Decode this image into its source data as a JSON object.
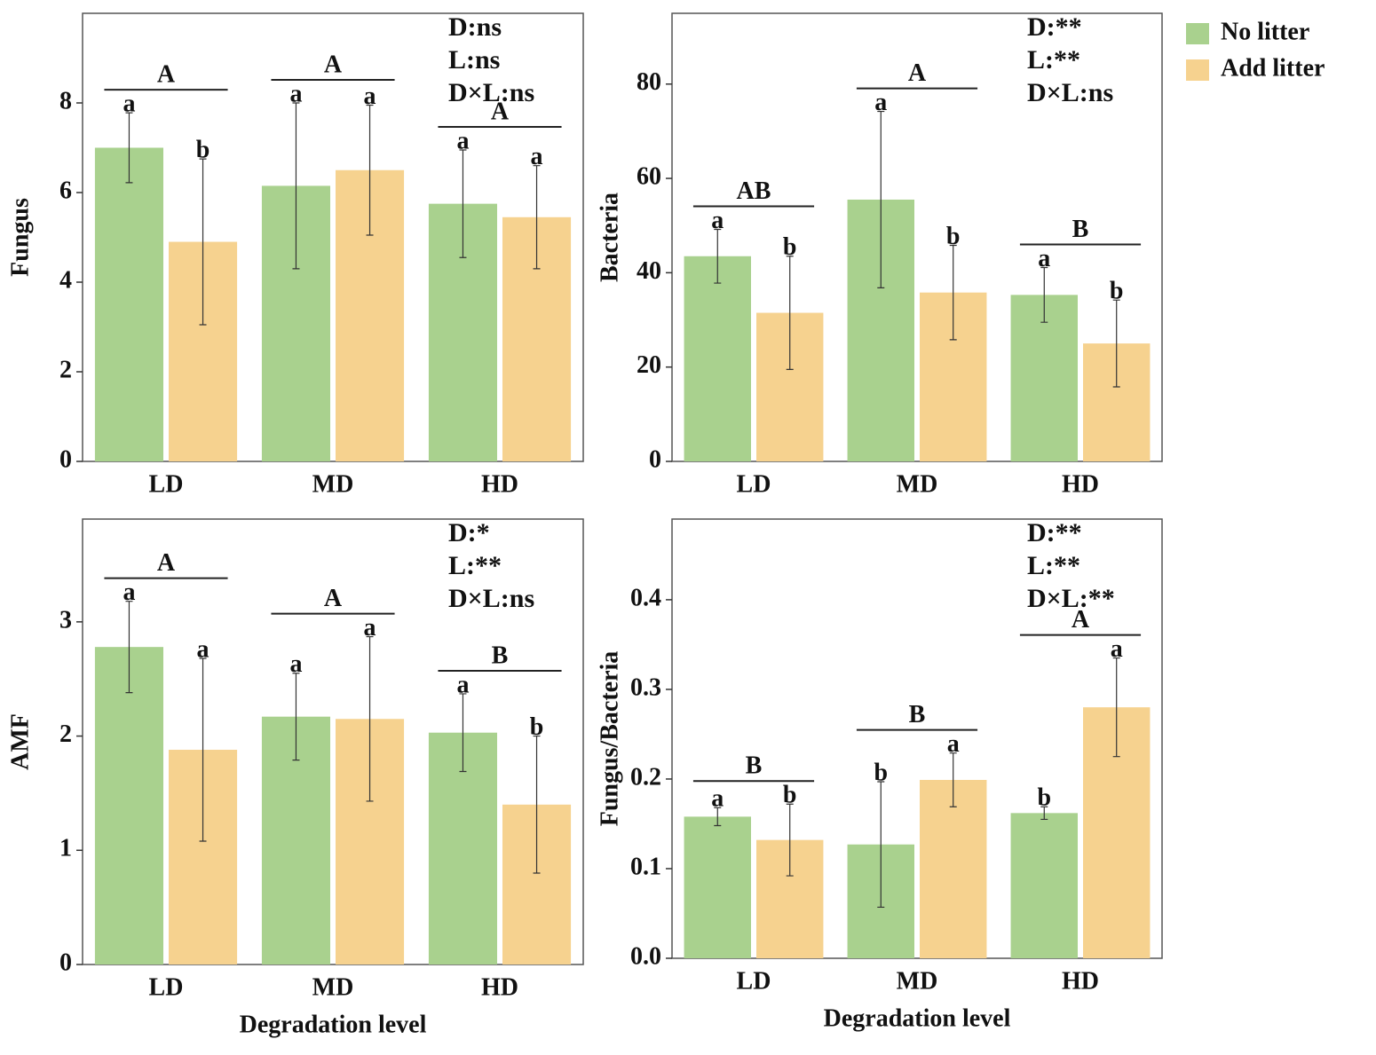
{
  "legend": [
    {
      "name": "No litter",
      "color": "#a9d18e"
    },
    {
      "name": "Add litter",
      "color": "#f6d28f"
    }
  ],
  "chart_data": [
    {
      "type": "bar",
      "ylabel": "Fungus",
      "categories": [
        "LD",
        "MD",
        "HD"
      ],
      "series": [
        {
          "values": [
            7.0,
            6.15,
            5.75
          ],
          "errors": [
            0.78,
            1.85,
            1.2
          ],
          "letters": [
            "a",
            "a",
            "a"
          ]
        },
        {
          "values": [
            4.9,
            6.5,
            5.45
          ],
          "errors": [
            1.85,
            1.45,
            1.15
          ],
          "letters": [
            "b",
            "a",
            "a"
          ]
        }
      ],
      "group_letters": [
        "A",
        "A",
        "A"
      ],
      "annotations": [
        "D:ns",
        "L:ns",
        "D×L:ns"
      ],
      "ylim": [
        0,
        10
      ],
      "yticks": [
        0,
        2,
        4,
        6,
        8
      ]
    },
    {
      "type": "bar",
      "ylabel": "Bacteria",
      "categories": [
        "LD",
        "MD",
        "HD"
      ],
      "series": [
        {
          "values": [
            43.5,
            55.5,
            35.3
          ],
          "errors": [
            5.7,
            18.7,
            5.8
          ],
          "letters": [
            "a",
            "a",
            "a"
          ]
        },
        {
          "values": [
            31.5,
            35.8,
            25
          ],
          "errors": [
            12,
            10,
            9.2
          ],
          "letters": [
            "b",
            "b",
            "b"
          ]
        }
      ],
      "group_letters": [
        "AB",
        "A",
        "B"
      ],
      "annotations": [
        "D:**",
        "L:**",
        "D×L:ns"
      ],
      "ylim": [
        0,
        95
      ],
      "yticks": [
        0,
        20,
        40,
        60,
        80
      ]
    },
    {
      "type": "bar",
      "ylabel": "AMF",
      "xlabel": "Degradation level",
      "categories": [
        "LD",
        "MD",
        "HD"
      ],
      "series": [
        {
          "values": [
            2.78,
            2.17,
            2.03
          ],
          "errors": [
            0.4,
            0.38,
            0.34
          ],
          "letters": [
            "a",
            "a",
            "a"
          ]
        },
        {
          "values": [
            1.88,
            2.15,
            1.4
          ],
          "errors": [
            0.8,
            0.72,
            0.6
          ],
          "letters": [
            "a",
            "a",
            "b"
          ]
        }
      ],
      "group_letters": [
        "A",
        "A",
        "B"
      ],
      "annotations": [
        "D:*",
        "L:**",
        "D×L:ns"
      ],
      "ylim": [
        0,
        3.9
      ],
      "yticks": [
        0,
        1,
        2,
        3
      ]
    },
    {
      "type": "bar",
      "ylabel": "Fungus/Bacteria",
      "xlabel": "Degradation level",
      "categories": [
        "LD",
        "MD",
        "HD"
      ],
      "series": [
        {
          "values": [
            0.158,
            0.127,
            0.162
          ],
          "errors": [
            0.01,
            0.07,
            0.007
          ],
          "letters": [
            "a",
            "b",
            "b"
          ]
        },
        {
          "values": [
            0.132,
            0.199,
            0.28
          ],
          "errors": [
            0.04,
            0.03,
            0.055
          ],
          "letters": [
            "b",
            "a",
            "a"
          ]
        }
      ],
      "group_letters": [
        "B",
        "B",
        "A"
      ],
      "annotations": [
        "D:**",
        "L:**",
        "D×L:**"
      ],
      "ylim": [
        0,
        0.49
      ],
      "yticks": [
        {
          "value": 0,
          "label": "0.0"
        },
        0.1,
        0.2,
        0.3,
        0.4
      ]
    }
  ]
}
